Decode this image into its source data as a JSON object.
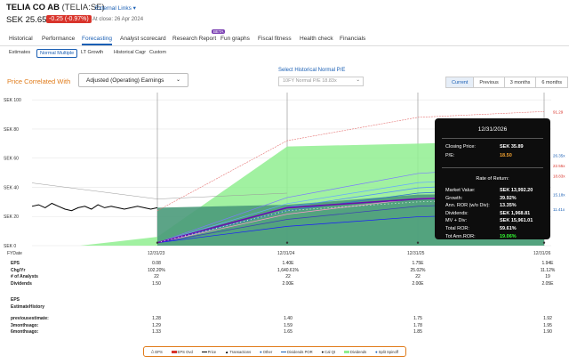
{
  "header": {
    "company_name": "TELIA CO AB",
    "ticker": "(TELIA:SE)",
    "external_links": "External Links",
    "external_links_chevron": "▾",
    "price": "SEK 25.65",
    "change": "-0.25 (-0.97%)",
    "close_text": "At close: 26 Apr 2024"
  },
  "main_tabs": [
    {
      "label": "Historical"
    },
    {
      "label": "Performance"
    },
    {
      "label": "Forecasting"
    },
    {
      "label": "Analyst scorecard"
    },
    {
      "label": "Research Report"
    },
    {
      "label": "Fun graphs"
    },
    {
      "label": "Fiscal fitness"
    },
    {
      "label": "Health check"
    },
    {
      "label": "Financials"
    }
  ],
  "beta_badge": "BETA",
  "sub_tabs": [
    {
      "label": "Estimates"
    },
    {
      "label": "Normal Multiple"
    },
    {
      "label": "LT Growth"
    },
    {
      "label": "Historical Cagr"
    },
    {
      "label": "Custom"
    }
  ],
  "controls": {
    "price_correlated_label": "Price Correlated With",
    "earnings_dropdown": "Adjusted (Operating) Earnings",
    "historical_pe_label": "Select Historical Normal P/E",
    "historical_pe_value": "10FY Normal P/E 18.83x",
    "period_tabs": [
      "Current",
      "Previous",
      "3 months",
      "6 months"
    ]
  },
  "chart_data": {
    "type": "area",
    "y_ticks": [
      "SEK 100",
      "SEK 80",
      "SEK 60",
      "SEK 40",
      "SEK 20",
      "SEK 0"
    ],
    "ylim": [
      0,
      105
    ],
    "x_ticks": [
      "FYDate",
      "12/31/23",
      "12/31/24",
      "12/31/25",
      "12/31/26"
    ],
    "right_labels": [
      "91.29",
      "26.35x",
      "22.55x",
      "18.83x",
      "15.18x",
      "11.41x"
    ],
    "price_history": [
      27,
      28,
      26,
      29,
      27,
      25,
      24,
      26,
      27,
      25,
      28,
      26,
      27,
      26,
      25,
      26,
      27,
      26,
      25,
      26
    ],
    "fair_value_high": [
      24,
      72,
      88,
      92
    ],
    "fair_value_normal": [
      26,
      28,
      35,
      36
    ],
    "valuation_band_upper": [
      24,
      68,
      70,
      72
    ],
    "valuation_band_lower": [
      0,
      0,
      0,
      0
    ],
    "colors": {
      "band": "#90ee90",
      "dark_band": "#4a9a7a",
      "eps_line": "#6a0dad",
      "price": "#000000",
      "high_line": "#e57373"
    }
  },
  "tooltip": {
    "date": "12/31/2026",
    "rows_top": [
      {
        "label": "Closing Price:",
        "value": "SEK 35.89",
        "value_color": "#ffffff"
      },
      {
        "label": "P/E:",
        "value": "18.50",
        "value_color": "#f0a030"
      }
    ],
    "ror_header": "Rate of Return:",
    "rows_bottom": [
      {
        "label": "Market Value:",
        "value": "SEK 13,992.20",
        "value_color": "#ffffff"
      },
      {
        "label": "Growth:",
        "value": "39.92%",
        "value_color": "#ffffff"
      },
      {
        "label": "Ann. ROR (w/o Div):",
        "value": "13.35%",
        "value_color": "#ffffff"
      },
      {
        "label": "Dividends:",
        "value": "SEK 1,968.81",
        "value_color": "#ffffff"
      },
      {
        "label": "MV + Div:",
        "value": "SEK 15,961.01",
        "value_color": "#ffffff"
      },
      {
        "label": "Total ROR:",
        "value": "59.61%",
        "value_color": "#ffffff"
      },
      {
        "label": "Tot Ann.ROR:",
        "value": "19.06%",
        "value_color": "#33ff33"
      }
    ]
  },
  "table": {
    "rows": [
      {
        "label": "EPS",
        "bold": true,
        "values": [
          "0.08",
          "1.40E",
          "1.75E",
          "1.94E"
        ]
      },
      {
        "label": "Chg/Yr",
        "bold": true,
        "values": [
          "102.20%",
          "1,640.61%",
          "25.02%",
          "11.12%"
        ]
      },
      {
        "label": "# of Analysts",
        "bold": true,
        "values": [
          "22",
          "22",
          "22",
          "19"
        ]
      },
      {
        "label": "Dividends",
        "bold": true,
        "values": [
          "1.50",
          "2.00E",
          "2.00E",
          "2.05E"
        ]
      }
    ],
    "estimate_label": "EPS",
    "estimate_history_label": "EstimateHistory",
    "history_rows": [
      {
        "label": "previousestimate:",
        "values": [
          "1.28",
          "1.40",
          "1.75",
          "1.92"
        ]
      },
      {
        "label": "3monthsago:",
        "values": [
          "1.29",
          "1.59",
          "1.78",
          "1.95"
        ]
      },
      {
        "label": "6monthsago:",
        "values": [
          "1.33",
          "1.65",
          "1.85",
          "1.90"
        ]
      }
    ]
  },
  "legend": [
    {
      "label": "EPS",
      "icon": "triangle-outline",
      "color": "#000000"
    },
    {
      "label": "EPS Ovd",
      "icon": "square-red",
      "color": "#d9342b"
    },
    {
      "label": "Price",
      "icon": "line-black",
      "color": "#000000"
    },
    {
      "label": "Transactions",
      "icon": "triangle-solid",
      "color": "#000000"
    },
    {
      "label": "Other",
      "icon": "dot",
      "color": "#1a5fb4"
    },
    {
      "label": "Dividends POR",
      "icon": "line-blue",
      "color": "#1a5fb4"
    },
    {
      "label": "Cal Qt",
      "icon": "dot-black",
      "color": "#000000"
    },
    {
      "label": "Dividends",
      "icon": "swatch",
      "color": "#90ee90"
    },
    {
      "label": "Split Spinoff",
      "icon": "circle-blue",
      "color": "#1a5fb4"
    }
  ]
}
